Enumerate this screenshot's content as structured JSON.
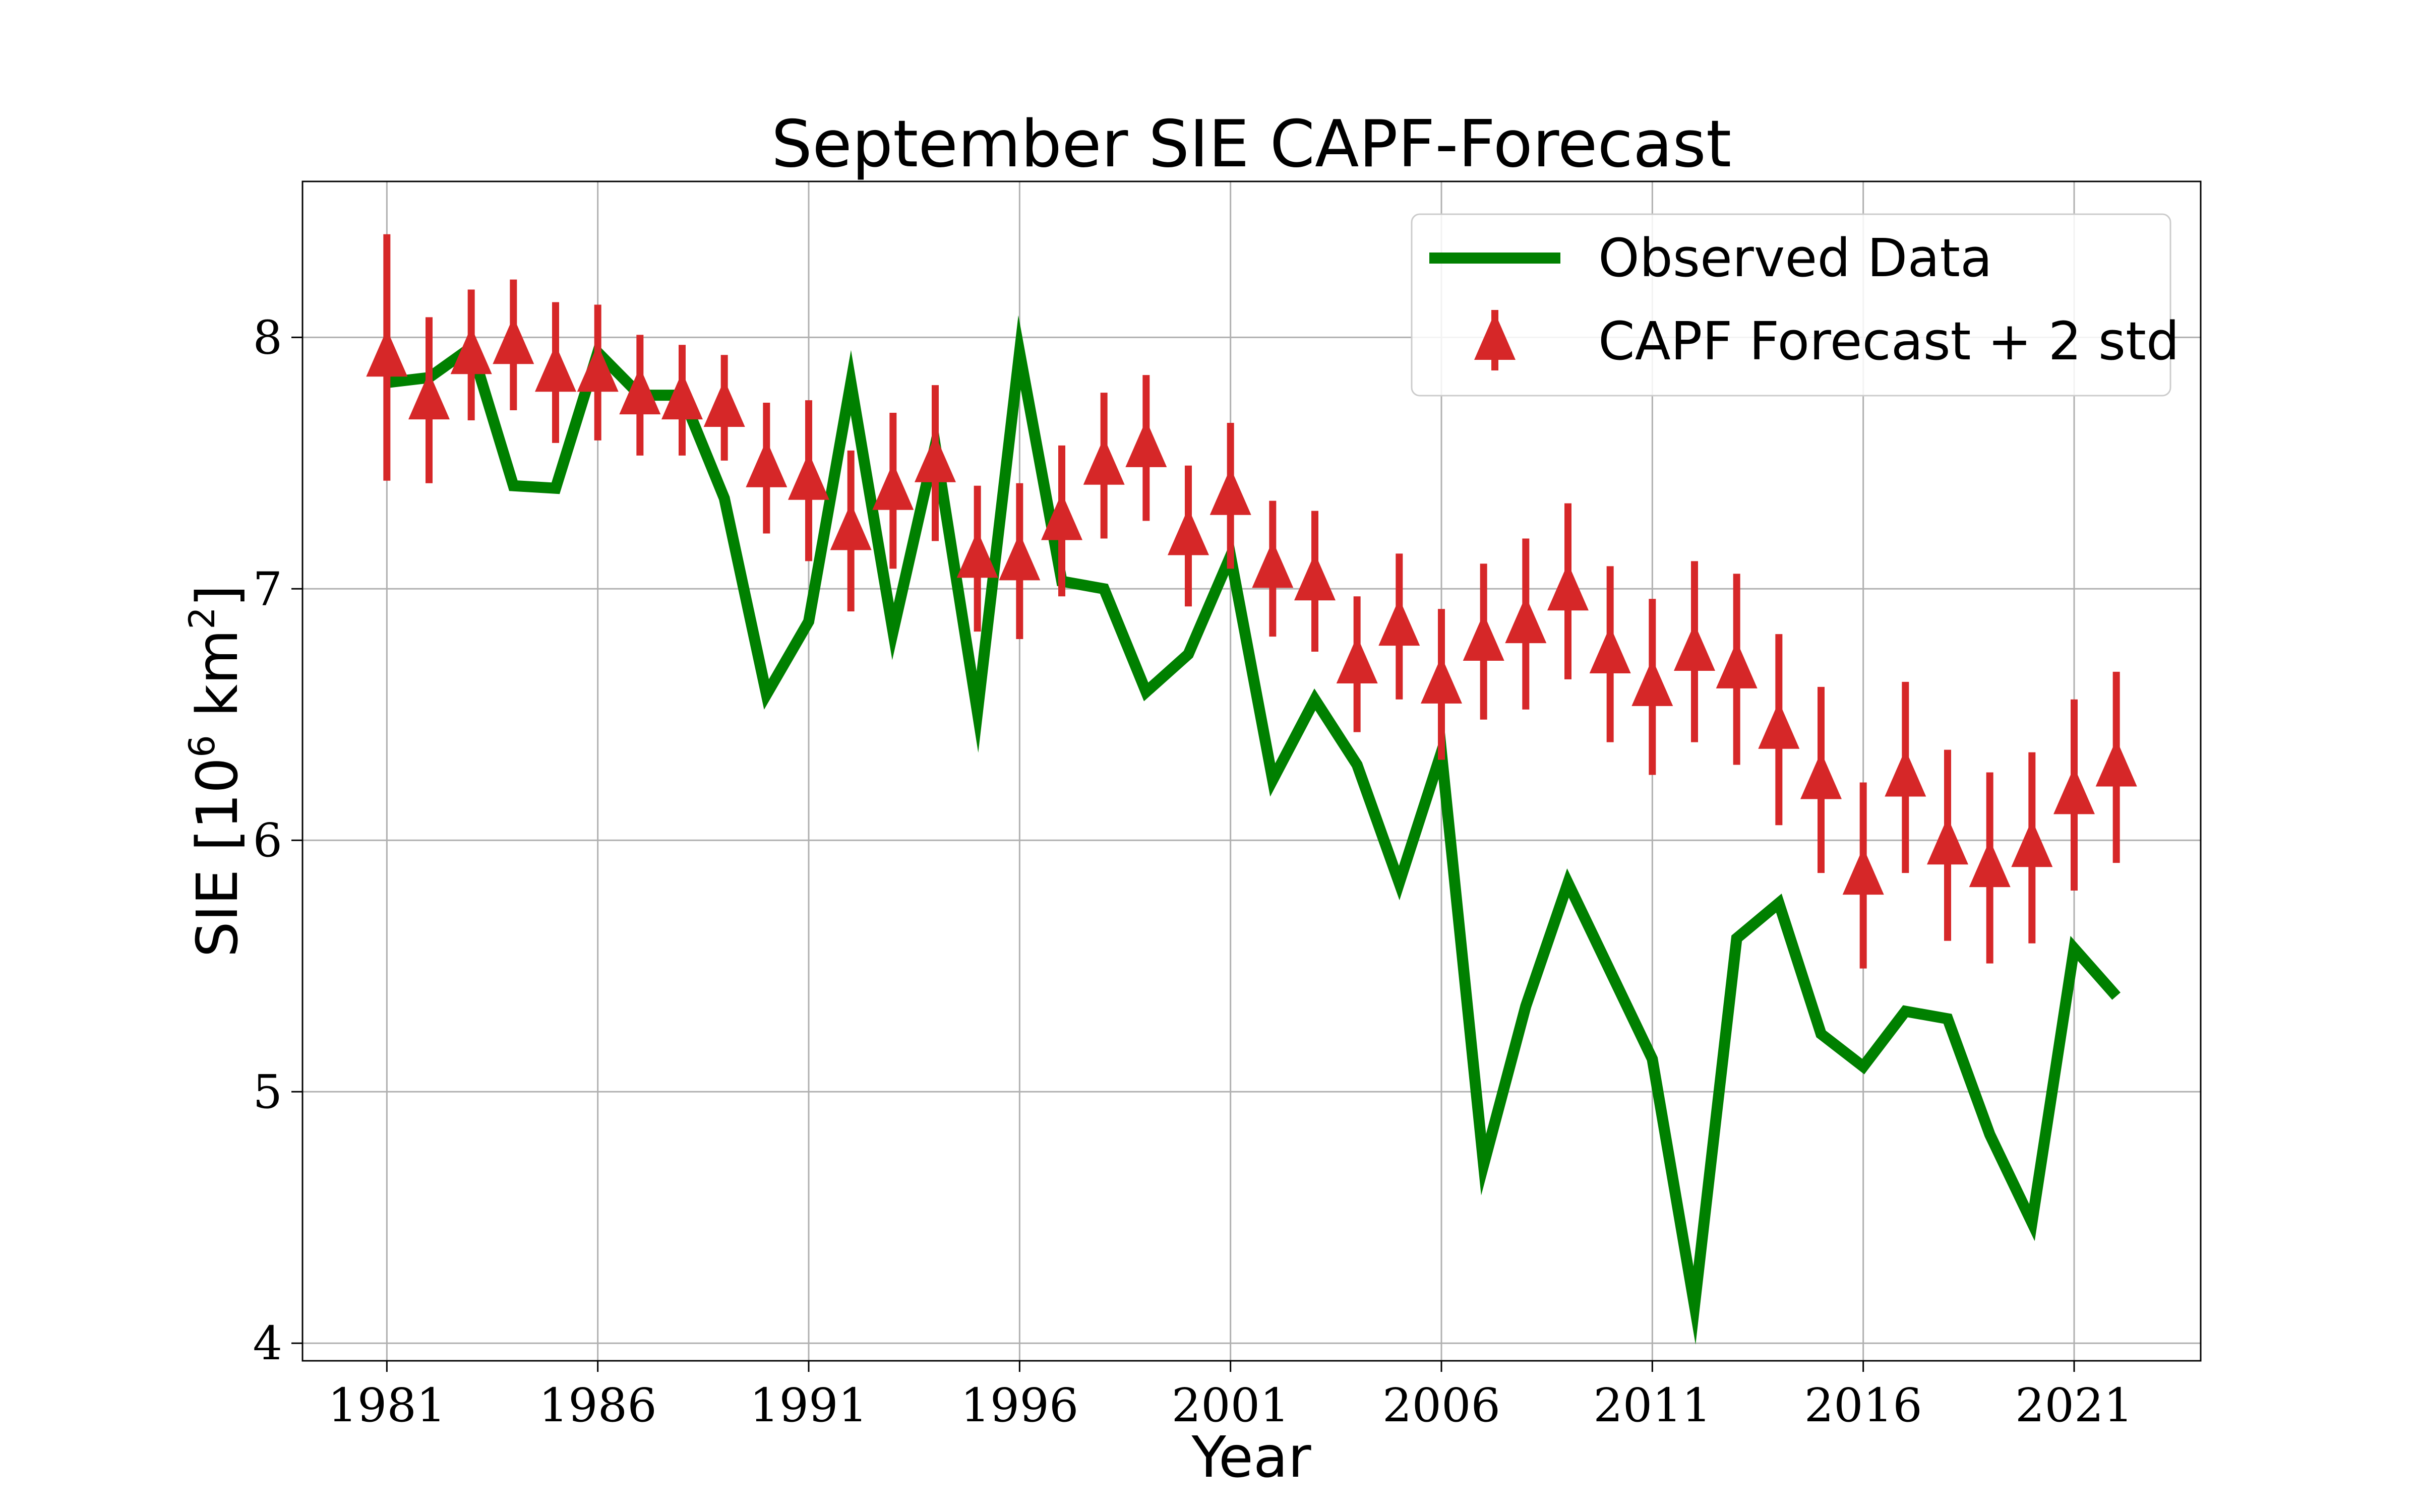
{
  "chart_data": {
    "type": "line",
    "title": "September SIE CAPF-Forecast",
    "xlabel": "Year",
    "ylabel_main": "SIE [10",
    "ylabel_exp1": "6",
    "ylabel_mid": " km",
    "ylabel_exp2": "2",
    "ylabel_end": "]",
    "xlim": [
      1979,
      2024
    ],
    "ylim": [
      3.93,
      8.62
    ],
    "xticks": [
      1981,
      1986,
      1991,
      1996,
      2001,
      2006,
      2011,
      2016,
      2021
    ],
    "yticks": [
      4,
      5,
      6,
      7,
      8
    ],
    "grid": true,
    "legend_position": "top-right",
    "series": [
      {
        "name": "Observed Data",
        "kind": "line",
        "color": "#008000",
        "x": [
          1981,
          1982,
          1983,
          1984,
          1985,
          1986,
          1987,
          1988,
          1989,
          1990,
          1991,
          1992,
          1993,
          1994,
          1995,
          1996,
          1997,
          1998,
          1999,
          2000,
          2001,
          2002,
          2003,
          2004,
          2005,
          2006,
          2007,
          2008,
          2009,
          2010,
          2011,
          2012,
          2013,
          2014,
          2015,
          2016,
          2017,
          2018,
          2019,
          2020,
          2021,
          2022
        ],
        "y": [
          7.82,
          7.84,
          7.96,
          7.41,
          7.4,
          7.94,
          7.77,
          7.77,
          7.36,
          6.58,
          6.87,
          7.82,
          6.83,
          7.57,
          6.51,
          7.94,
          7.03,
          7.0,
          6.59,
          6.74,
          7.13,
          6.24,
          6.56,
          6.3,
          5.83,
          6.35,
          4.71,
          5.34,
          5.83,
          5.48,
          5.13,
          4.15,
          5.61,
          5.75,
          5.23,
          5.1,
          5.32,
          5.29,
          4.83,
          4.48,
          5.57,
          5.38
        ]
      },
      {
        "name": "CAPF Forecast + 2 std",
        "kind": "errorbar",
        "color": "#d62728",
        "x": [
          1981,
          1982,
          1983,
          1984,
          1985,
          1986,
          1987,
          1988,
          1989,
          1990,
          1991,
          1992,
          1993,
          1994,
          1995,
          1996,
          1997,
          1998,
          1999,
          2000,
          2001,
          2002,
          2003,
          2004,
          2005,
          2006,
          2007,
          2008,
          2009,
          2010,
          2011,
          2012,
          2013,
          2014,
          2015,
          2016,
          2017,
          2018,
          2019,
          2020,
          2021,
          2022
        ],
        "y": [
          7.92,
          7.75,
          7.93,
          7.97,
          7.86,
          7.86,
          7.77,
          7.75,
          7.72,
          7.48,
          7.43,
          7.23,
          7.39,
          7.5,
          7.12,
          7.11,
          7.27,
          7.49,
          7.56,
          7.21,
          7.37,
          7.08,
          7.03,
          6.7,
          6.85,
          6.62,
          6.79,
          6.86,
          6.99,
          6.74,
          6.61,
          6.75,
          6.68,
          6.44,
          6.24,
          5.86,
          6.25,
          5.98,
          5.89,
          5.97,
          6.18,
          6.29
        ],
        "err": [
          0.49,
          0.33,
          0.26,
          0.26,
          0.28,
          0.27,
          0.24,
          0.22,
          0.21,
          0.26,
          0.32,
          0.32,
          0.31,
          0.31,
          0.29,
          0.31,
          0.3,
          0.29,
          0.29,
          0.28,
          0.29,
          0.27,
          0.28,
          0.27,
          0.29,
          0.3,
          0.31,
          0.34,
          0.35,
          0.35,
          0.35,
          0.36,
          0.38,
          0.38,
          0.37,
          0.37,
          0.38,
          0.38,
          0.38,
          0.38,
          0.38,
          0.38
        ]
      }
    ]
  }
}
